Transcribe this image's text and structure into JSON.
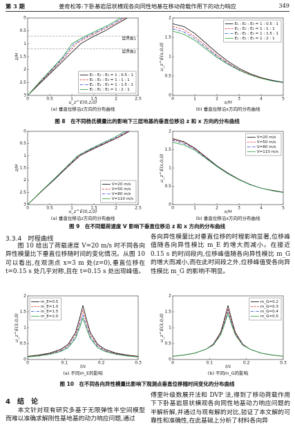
{
  "header": {
    "issue": "第 3 期",
    "title": "姜奇松等:下卧基岩层状横观各向同性地基在移动荷载作用下的动力响应",
    "page": "349"
  },
  "figures": [
    {
      "caption": "图 8　在不同杨氏模量比的影响下三层地基的垂直位移沿 z 和 x 方向的分布曲线"
    },
    {
      "caption": "图 9　在不同载荷速度 V 影响下垂直位移沿 z 和 x 方向的分布曲线"
    },
    {
      "caption": "图 10　在不同各向异性模量比影响下观测点垂直位移随时间变化的分布曲线"
    }
  ],
  "sections": [
    {
      "heading": "3.3.4　时程曲线",
      "left": "图 10 给出了荷载速度 V=20 m/s 时不同各向异性模量比下垂直位移随时间的变化情况。从图 10 可以看出,在观测点 x=3 m 处(z=0),垂直位移在 t=0.15 s 处几乎对称,且在 t=0.15 s 处出现峰值。",
      "right": "各向异性模量比对垂直位移的时程影响显著,位移峰值随各向异性模比 m_E 的增大而减小。在接近 0.15 s 的时间段内,位移峰值随各向异性模比 m_G 的增大而减小,而在此时间段之外,位移峰值受各向异性模比 m_G 的影响不明显。"
    },
    {
      "heading": "4　结　论",
      "left": "本文针对现有研究多基于无限弹性半空间模型而难以准确求解刚性基地基的动力响应问题,通过",
      "right": "傅里叶级数展开法和 DVP 法,得到了移动荷载作用下下卧基岩层状横观各向同性地基动力响应问题的半解析解,并通过与现有解的对比,验证了本文解的可靠性和准确性,在此基础上分析了材料各向异"
    }
  ],
  "chart_data": [
    {
      "type": "line",
      "orientation": "horizontal",
      "y_inverted": true,
      "caption": "(a) 垂直位移沿z方向的分布曲线",
      "x_label": "u_z^E(0,z,0)",
      "y_label": "z/H",
      "xlim": [
        0,
        2.5
      ],
      "xticks": [
        0,
        0.5,
        1,
        1.5,
        2,
        2.5
      ],
      "ylim": [
        0,
        3
      ],
      "yticks": [
        0,
        0.5,
        1,
        1.5,
        2,
        2.5,
        3
      ],
      "legend": "lower right",
      "annotations": [
        {
          "value": 0.7,
          "label": "层界面1"
        },
        {
          "value": 1.2,
          "label": "层界面2"
        }
      ],
      "y": [
        0,
        0.25,
        0.5,
        0.75,
        1,
        1.5,
        2,
        2.5,
        3
      ],
      "series": [
        {
          "name": "E₁ : E₂ : E₃ = 1 : 0.5 : 1",
          "color": "#000000",
          "dash": "solid",
          "values": [
            2.25,
            2.0,
            1.75,
            1.45,
            1.2,
            0.9,
            0.6,
            0.3,
            0
          ]
        },
        {
          "name": "E₁ : E₂ : E₃ = 1 : 1 : 1",
          "color": "#d62728",
          "dash": "dashed",
          "values": [
            2.2,
            1.95,
            1.65,
            1.35,
            1.1,
            0.85,
            0.57,
            0.28,
            0
          ]
        },
        {
          "name": "E₁ : E₂ : E₃ = 1 : 1.5 : 1",
          "color": "#1f3fbf",
          "dash": "dashdot",
          "values": [
            2.15,
            1.9,
            1.6,
            1.3,
            1.05,
            0.82,
            0.55,
            0.27,
            0
          ]
        },
        {
          "name": "E₁ : E₂ : E₃ = 1 : 2 : 1",
          "color": "#2a9d3a",
          "dash": "solid",
          "values": [
            2.1,
            1.85,
            1.55,
            1.25,
            1.0,
            0.8,
            0.53,
            0.26,
            0
          ]
        }
      ]
    },
    {
      "type": "line",
      "caption": "(b) 垂直位移沿x方向的分布曲线",
      "x_label": "x/H",
      "y_label": "u_z^E(x,0,0)",
      "xlim": [
        0,
        5
      ],
      "xticks": [
        0,
        1,
        2,
        3,
        4,
        5
      ],
      "ylim": [
        0,
        2
      ],
      "yticks": [
        0,
        0.5,
        1,
        1.5,
        2
      ],
      "legend": "upper right",
      "x": [
        0,
        0.5,
        1,
        1.5,
        2,
        2.5,
        3,
        3.5,
        4,
        4.5,
        5
      ],
      "series": [
        {
          "name": "E₁ : E₂ : E₃ = 1 : 0.5 : 1",
          "color": "#000000",
          "dash": "solid",
          "values": [
            1.85,
            1.78,
            1.6,
            1.35,
            1.1,
            0.88,
            0.7,
            0.56,
            0.46,
            0.39,
            0.34
          ]
        },
        {
          "name": "E₁ : E₂ : E₃ = 1 : 1 : 1",
          "color": "#d62728",
          "dash": "dashed",
          "values": [
            1.78,
            1.7,
            1.52,
            1.28,
            1.04,
            0.84,
            0.67,
            0.54,
            0.45,
            0.38,
            0.33
          ]
        },
        {
          "name": "E₁ : E₂ : E₃ = 1 : 1.5 : 1",
          "color": "#1f3fbf",
          "dash": "dashdot",
          "values": [
            1.72,
            1.64,
            1.47,
            1.24,
            1.01,
            0.82,
            0.66,
            0.53,
            0.44,
            0.38,
            0.33
          ]
        },
        {
          "name": "E₁ : E₂ : E₃ = 1 : 2 : 1",
          "color": "#2a9d3a",
          "dash": "solid",
          "values": [
            1.66,
            1.58,
            1.42,
            1.2,
            0.98,
            0.8,
            0.65,
            0.53,
            0.44,
            0.37,
            0.33
          ]
        }
      ]
    },
    {
      "type": "line",
      "orientation": "horizontal",
      "y_inverted": true,
      "caption": "(a) 垂直位移沿z方向的分布曲线",
      "x_label": "u_z^E(0,z,0)",
      "y_label": "z/H",
      "xlim": [
        0,
        2.5
      ],
      "xticks": [
        0,
        0.5,
        1,
        1.5,
        2,
        2.5
      ],
      "ylim": [
        0,
        3
      ],
      "yticks": [
        0,
        0.5,
        1,
        1.5,
        2,
        2.5,
        3
      ],
      "legend": "lower right",
      "y": [
        0,
        0.25,
        0.5,
        0.75,
        1,
        1.5,
        2,
        2.5,
        3
      ],
      "series": [
        {
          "name": "V=20 m/s",
          "color": "#000000",
          "dash": "solid",
          "values": [
            2.3,
            2.05,
            1.75,
            1.45,
            1.18,
            0.88,
            0.59,
            0.29,
            0
          ]
        },
        {
          "name": "V=50 m/s",
          "color": "#d62728",
          "dash": "dashed",
          "values": [
            2.28,
            2.03,
            1.73,
            1.43,
            1.17,
            0.87,
            0.58,
            0.29,
            0
          ]
        },
        {
          "name": "V=80 m/s",
          "color": "#1f3fbf",
          "dash": "dashdot",
          "values": [
            2.25,
            2.0,
            1.7,
            1.41,
            1.15,
            0.86,
            0.58,
            0.28,
            0
          ]
        },
        {
          "name": "V=110 m/s",
          "color": "#2a9d3a",
          "dash": "solid",
          "values": [
            2.2,
            1.96,
            1.67,
            1.38,
            1.13,
            0.85,
            0.57,
            0.28,
            0
          ]
        }
      ]
    },
    {
      "type": "line",
      "caption": "(b) 垂直位移沿x方向的分布曲线",
      "x_label": "x/H",
      "y_label": "u_z^E(x,0,0)",
      "xlim": [
        0,
        5
      ],
      "xticks": [
        0,
        1,
        2,
        3,
        4,
        5
      ],
      "ylim": [
        0,
        2
      ],
      "yticks": [
        0,
        0.5,
        1,
        1.5,
        2
      ],
      "legend": "upper right",
      "x": [
        0,
        0.5,
        1,
        1.5,
        2,
        2.5,
        3,
        3.5,
        4,
        4.5,
        5
      ],
      "series": [
        {
          "name": "V=20 m/s",
          "color": "#000000",
          "dash": "solid",
          "values": [
            1.8,
            1.72,
            1.54,
            1.3,
            1.06,
            0.86,
            0.69,
            0.55,
            0.45,
            0.39,
            0.34
          ]
        },
        {
          "name": "V=50 m/s",
          "color": "#d62728",
          "dash": "dashed",
          "values": [
            1.78,
            1.7,
            1.53,
            1.29,
            1.05,
            0.85,
            0.68,
            0.55,
            0.45,
            0.38,
            0.34
          ]
        },
        {
          "name": "V=80 m/s",
          "color": "#1f3fbf",
          "dash": "dashdot",
          "values": [
            1.75,
            1.67,
            1.51,
            1.28,
            1.05,
            0.85,
            0.68,
            0.55,
            0.45,
            0.38,
            0.33
          ]
        },
        {
          "name": "V=110 m/s",
          "color": "#2a9d3a",
          "dash": "solid",
          "values": [
            1.7,
            1.63,
            1.48,
            1.26,
            1.04,
            0.84,
            0.68,
            0.54,
            0.45,
            0.38,
            0.33
          ]
        }
      ]
    },
    {
      "type": "line",
      "caption": "(a) 不同m_E的影响",
      "x_label": "t/s",
      "y_label": "u_z^E(3,0,0)",
      "xlim": [
        0,
        0.3
      ],
      "xticks": [
        0,
        0.1,
        0.2,
        0.3
      ],
      "ylim": [
        0,
        2
      ],
      "yticks": [
        0,
        0.5,
        1,
        1.5,
        2
      ],
      "legend": "upper left",
      "x": [
        0,
        0.03,
        0.06,
        0.09,
        0.11,
        0.13,
        0.14,
        0.15,
        0.16,
        0.17,
        0.19,
        0.21,
        0.24,
        0.27,
        0.3
      ],
      "series": [
        {
          "name": "m_E=0.5",
          "color": "#000000",
          "dash": "solid",
          "values": [
            0.1,
            0.14,
            0.2,
            0.32,
            0.48,
            0.85,
            1.25,
            1.7,
            1.25,
            0.85,
            0.48,
            0.32,
            0.2,
            0.14,
            0.1
          ]
        },
        {
          "name": "m_E=1.0",
          "color": "#d62728",
          "dash": "dashed",
          "values": [
            0.09,
            0.13,
            0.18,
            0.29,
            0.44,
            0.78,
            1.14,
            1.55,
            1.14,
            0.78,
            0.44,
            0.29,
            0.18,
            0.13,
            0.09
          ]
        },
        {
          "name": "m_E=1.5",
          "color": "#1f3fbf",
          "dash": "dashdot",
          "values": [
            0.08,
            0.12,
            0.17,
            0.27,
            0.4,
            0.71,
            1.04,
            1.4,
            1.04,
            0.71,
            0.4,
            0.27,
            0.17,
            0.12,
            0.08
          ]
        },
        {
          "name": "m_E=2.0",
          "color": "#2a9d3a",
          "dash": "solid",
          "values": [
            0.08,
            0.11,
            0.16,
            0.25,
            0.37,
            0.66,
            0.96,
            1.3,
            0.96,
            0.66,
            0.37,
            0.25,
            0.16,
            0.11,
            0.08
          ]
        }
      ]
    },
    {
      "type": "line",
      "caption": "(b) 不同m_G的影响",
      "x_label": "t/s",
      "y_label": "u_z^E(3,0,0)",
      "xlim": [
        0,
        0.3
      ],
      "xticks": [
        0,
        0.1,
        0.2,
        0.3
      ],
      "ylim": [
        0,
        2
      ],
      "yticks": [
        0,
        0.5,
        1,
        1.5,
        2
      ],
      "legend": "upper right",
      "x": [
        0,
        0.03,
        0.06,
        0.09,
        0.11,
        0.13,
        0.14,
        0.15,
        0.16,
        0.17,
        0.19,
        0.21,
        0.24,
        0.27,
        0.3
      ],
      "series": [
        {
          "name": "m_G=0.2",
          "color": "#000000",
          "dash": "solid",
          "values": [
            0.1,
            0.14,
            0.2,
            0.32,
            0.48,
            0.85,
            1.25,
            1.7,
            1.25,
            0.85,
            0.48,
            0.32,
            0.2,
            0.14,
            0.1
          ]
        },
        {
          "name": "m_G=0.3",
          "color": "#d62728",
          "dash": "dashed",
          "values": [
            0.1,
            0.14,
            0.2,
            0.32,
            0.47,
            0.82,
            1.18,
            1.6,
            1.18,
            0.82,
            0.47,
            0.32,
            0.2,
            0.14,
            0.1
          ]
        },
        {
          "name": "m_G=0.4",
          "color": "#1f3fbf",
          "dash": "dashdot",
          "values": [
            0.1,
            0.14,
            0.2,
            0.32,
            0.46,
            0.79,
            1.12,
            1.5,
            1.12,
            0.79,
            0.46,
            0.32,
            0.2,
            0.14,
            0.1
          ]
        },
        {
          "name": "m_G=0.5",
          "color": "#2a9d3a",
          "dash": "solid",
          "values": [
            0.1,
            0.14,
            0.2,
            0.32,
            0.45,
            0.77,
            1.08,
            1.45,
            1.08,
            0.77,
            0.45,
            0.32,
            0.2,
            0.14,
            0.1
          ]
        }
      ]
    }
  ]
}
